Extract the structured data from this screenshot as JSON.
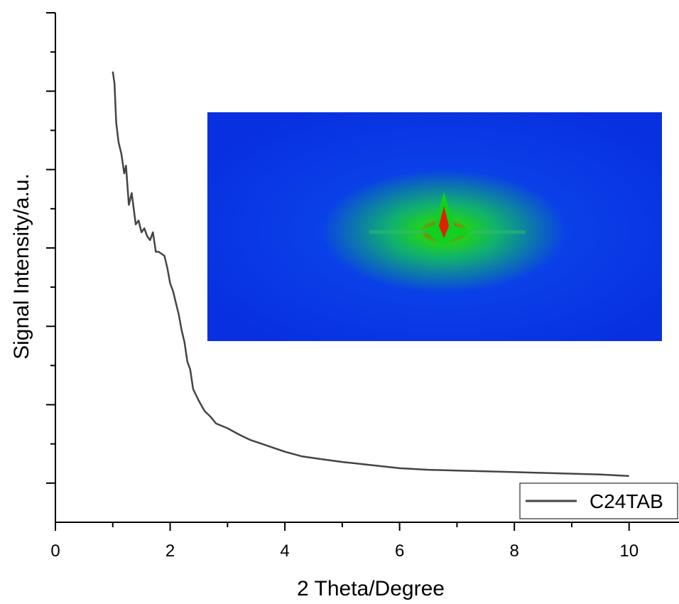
{
  "chart_data": {
    "type": "line",
    "xlabel": "2 Theta/Degree",
    "ylabel": "Signal Intensity/a.u.",
    "xlim": [
      0,
      10.87
    ],
    "xticks": [
      0,
      2,
      4,
      6,
      8,
      10
    ],
    "ylim": [
      -0.5,
      6
    ],
    "yticks": [
      0,
      1,
      2,
      3,
      4,
      5,
      6
    ],
    "legend": "lower right",
    "series": [
      {
        "name": "C24TAB",
        "color": "#444444",
        "x": [
          1.0,
          1.03,
          1.06,
          1.1,
          1.15,
          1.2,
          1.23,
          1.28,
          1.33,
          1.4,
          1.45,
          1.5,
          1.55,
          1.6,
          1.65,
          1.7,
          1.75,
          1.8,
          1.9,
          1.95,
          2.0,
          2.05,
          2.1,
          2.15,
          2.2,
          2.25,
          2.3,
          2.35,
          2.4,
          2.5,
          2.6,
          2.7,
          2.8,
          3.0,
          3.2,
          3.4,
          3.6,
          3.8,
          4.0,
          4.3,
          4.6,
          5.0,
          5.5,
          6.0,
          6.5,
          7.0,
          7.5,
          8.0,
          8.5,
          9.0,
          9.5,
          10.0
        ],
        "values": [
          5.25,
          5.1,
          4.6,
          4.35,
          4.2,
          3.95,
          4.05,
          3.55,
          3.7,
          3.3,
          3.35,
          3.2,
          3.25,
          3.15,
          3.1,
          3.2,
          2.95,
          2.95,
          2.9,
          2.75,
          2.55,
          2.45,
          2.3,
          2.15,
          1.95,
          1.8,
          1.55,
          1.45,
          1.2,
          1.05,
          0.92,
          0.85,
          0.76,
          0.7,
          0.62,
          0.55,
          0.5,
          0.45,
          0.4,
          0.34,
          0.31,
          0.27,
          0.23,
          0.19,
          0.17,
          0.16,
          0.15,
          0.14,
          0.13,
          0.12,
          0.11,
          0.09
        ]
      }
    ]
  }
}
